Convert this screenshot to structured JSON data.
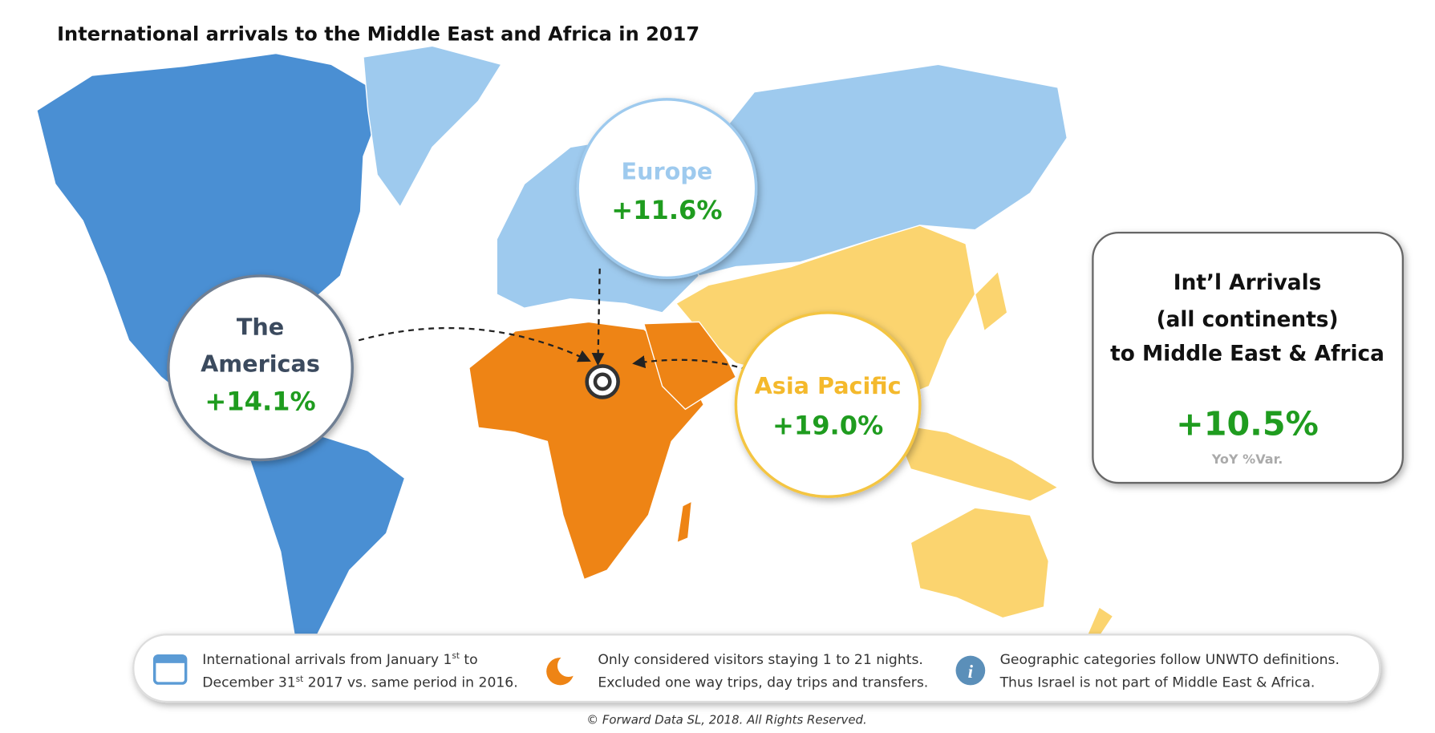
{
  "header": {
    "title": "International arrivals to the Middle East and Africa in 2017"
  },
  "regions": [
    {
      "name_lines": [
        "The",
        "Americas"
      ],
      "change": "+14.1%"
    },
    {
      "name_lines": [
        "Europe"
      ],
      "change": "+11.6%"
    },
    {
      "name_lines": [
        "Asia Pacific"
      ],
      "change": "+19.0%"
    }
  ],
  "summary": {
    "title_lines": [
      "Int’l Arrivals",
      "(all continents)",
      "to Middle East & Africa"
    ],
    "change": "+10.5%",
    "caption": "YoY %Var."
  },
  "notes": [
    {
      "lines": [
        [
          "International arrivals from January 1",
          "st",
          " to"
        ],
        [
          "December 31",
          "st",
          " 2017 vs. same period in 2016."
        ]
      ]
    },
    {
      "lines": [
        [
          "Only considered visitors staying 1 to 21 nights."
        ],
        [
          "Excluded one way trips, day trips and transfers."
        ]
      ]
    },
    {
      "lines": [
        [
          "Geographic categories follow UNWTO definitions."
        ],
        [
          "Thus Israel is not part of Middle East & Africa."
        ]
      ]
    }
  ],
  "footer": {
    "copyright": "© Forward Data SL, 2018. All Rights Reserved."
  }
}
